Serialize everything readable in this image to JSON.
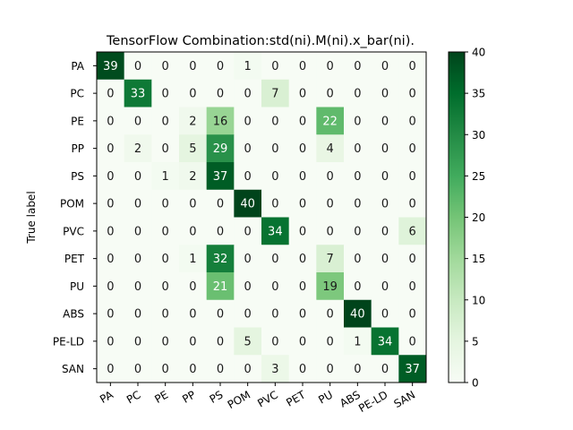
{
  "chart_data": {
    "type": "heatmap",
    "title": "TensorFlow Combination:std(ni).M(ni).x_bar(ni).",
    "xlabel": "",
    "ylabel": "True label",
    "x_categories": [
      "PA",
      "PC",
      "PE",
      "PP",
      "PS",
      "POM",
      "PVC",
      "PET",
      "PU",
      "ABS",
      "PE-LD",
      "SAN"
    ],
    "y_categories": [
      "PA",
      "PC",
      "PE",
      "PP",
      "PS",
      "POM",
      "PVC",
      "PET",
      "PU",
      "ABS",
      "PE-LD",
      "SAN"
    ],
    "values": [
      [
        39,
        0,
        0,
        0,
        0,
        1,
        0,
        0,
        0,
        0,
        0,
        0
      ],
      [
        0,
        33,
        0,
        0,
        0,
        0,
        7,
        0,
        0,
        0,
        0,
        0
      ],
      [
        0,
        0,
        0,
        2,
        16,
        0,
        0,
        0,
        22,
        0,
        0,
        0
      ],
      [
        0,
        2,
        0,
        5,
        29,
        0,
        0,
        0,
        4,
        0,
        0,
        0
      ],
      [
        0,
        0,
        1,
        2,
        37,
        0,
        0,
        0,
        0,
        0,
        0,
        0
      ],
      [
        0,
        0,
        0,
        0,
        0,
        40,
        0,
        0,
        0,
        0,
        0,
        0
      ],
      [
        0,
        0,
        0,
        0,
        0,
        0,
        34,
        0,
        0,
        0,
        0,
        6
      ],
      [
        0,
        0,
        0,
        1,
        32,
        0,
        0,
        0,
        7,
        0,
        0,
        0
      ],
      [
        0,
        0,
        0,
        0,
        21,
        0,
        0,
        0,
        19,
        0,
        0,
        0
      ],
      [
        0,
        0,
        0,
        0,
        0,
        0,
        0,
        0,
        0,
        40,
        0,
        0
      ],
      [
        0,
        0,
        0,
        0,
        0,
        5,
        0,
        0,
        0,
        1,
        34,
        0
      ],
      [
        0,
        0,
        0,
        0,
        0,
        0,
        3,
        0,
        0,
        0,
        0,
        37
      ]
    ],
    "colormap": "Greens",
    "colorbar": {
      "range": [
        0,
        40
      ],
      "ticks": [
        "0",
        "5",
        "10",
        "15",
        "20",
        "25",
        "30",
        "35",
        "40"
      ]
    },
    "x_tick_rotation": "30 degrees",
    "grid": false
  }
}
